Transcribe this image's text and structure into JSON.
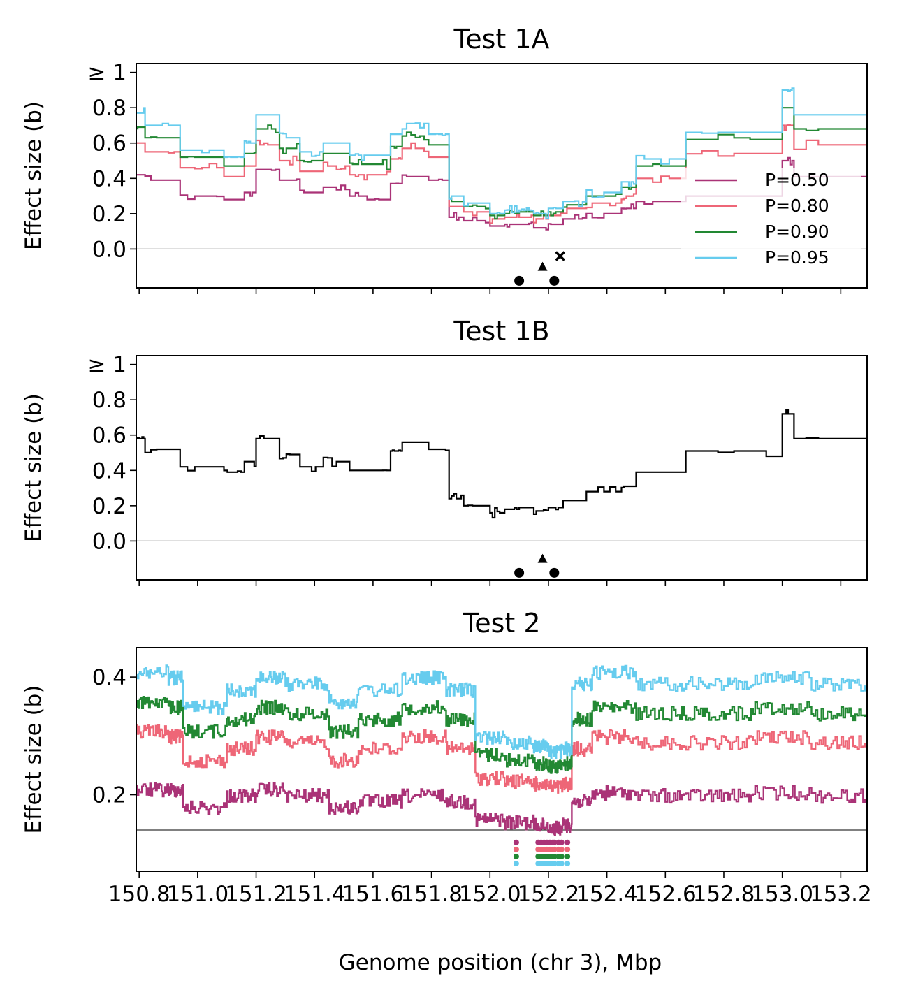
{
  "chart_data": [
    {
      "type": "line",
      "title": "Test 1A",
      "ylabel": "Effect size (b)",
      "ylim": [
        -0.22,
        1.05
      ],
      "xlim": [
        150.79,
        153.29
      ],
      "yticks": [
        0.0,
        0.2,
        0.4,
        0.6,
        0.8,
        1.0
      ],
      "ytick_labels": [
        "0.0",
        "0.2",
        "0.4",
        "0.6",
        "0.8",
        "≥ 1"
      ],
      "xticks": [
        150.8,
        151.0,
        151.2,
        151.4,
        151.6,
        151.8,
        152.0,
        152.2,
        152.4,
        152.6,
        152.8,
        153.0,
        153.2
      ],
      "reference_line": 0.0,
      "series": [
        {
          "name": "P=0.50",
          "color": "#aa3377",
          "x": [
            150.79,
            150.82,
            150.94,
            151.09,
            151.16,
            151.2,
            151.28,
            151.35,
            151.43,
            151.52,
            151.58,
            151.66,
            151.7,
            151.79,
            151.86,
            151.91,
            152.0,
            152.05,
            152.1,
            152.15,
            152.2,
            152.25,
            152.33,
            152.45,
            152.5,
            152.67,
            153.0,
            153.04,
            153.29
          ],
          "values": [
            0.42,
            0.39,
            0.3,
            0.28,
            0.32,
            0.45,
            0.39,
            0.32,
            0.35,
            0.3,
            0.28,
            0.37,
            0.41,
            0.39,
            0.18,
            0.16,
            0.13,
            0.14,
            0.14,
            0.12,
            0.14,
            0.17,
            0.2,
            0.23,
            0.27,
            0.3,
            0.5,
            0.41,
            0.41
          ]
        },
        {
          "name": "P=0.80",
          "color": "#ee6677",
          "x": [
            150.79,
            150.82,
            150.94,
            151.09,
            151.16,
            151.2,
            151.28,
            151.35,
            151.43,
            151.52,
            151.58,
            151.66,
            151.7,
            151.79,
            151.86,
            151.91,
            152.0,
            152.05,
            152.1,
            152.15,
            152.2,
            152.25,
            152.33,
            152.45,
            152.5,
            152.67,
            153.0,
            153.04,
            153.29
          ],
          "values": [
            0.6,
            0.55,
            0.46,
            0.41,
            0.47,
            0.59,
            0.5,
            0.44,
            0.47,
            0.42,
            0.42,
            0.51,
            0.57,
            0.52,
            0.24,
            0.21,
            0.17,
            0.18,
            0.18,
            0.17,
            0.19,
            0.23,
            0.26,
            0.3,
            0.4,
            0.54,
            0.7,
            0.59,
            0.59
          ]
        },
        {
          "name": "P=0.90",
          "color": "#228833",
          "x": [
            150.79,
            150.82,
            150.94,
            151.09,
            151.16,
            151.2,
            151.28,
            151.35,
            151.43,
            151.52,
            151.58,
            151.66,
            151.7,
            151.79,
            151.86,
            151.91,
            152.0,
            152.05,
            152.1,
            152.15,
            152.2,
            152.25,
            152.33,
            152.45,
            152.5,
            152.67,
            153.0,
            153.04,
            153.29
          ],
          "values": [
            0.69,
            0.63,
            0.52,
            0.47,
            0.54,
            0.68,
            0.57,
            0.5,
            0.54,
            0.48,
            0.48,
            0.58,
            0.64,
            0.59,
            0.27,
            0.24,
            0.19,
            0.2,
            0.21,
            0.19,
            0.21,
            0.25,
            0.3,
            0.35,
            0.47,
            0.62,
            0.8,
            0.68,
            0.68
          ]
        },
        {
          "name": "P=0.95",
          "color": "#66ccee",
          "x": [
            150.79,
            150.82,
            150.94,
            151.09,
            151.16,
            151.2,
            151.28,
            151.35,
            151.43,
            151.52,
            151.58,
            151.66,
            151.7,
            151.79,
            151.86,
            151.91,
            152.0,
            152.05,
            152.1,
            152.15,
            152.2,
            152.25,
            152.33,
            152.45,
            152.5,
            152.67,
            153.0,
            153.04,
            153.29
          ],
          "values": [
            0.77,
            0.7,
            0.56,
            0.52,
            0.6,
            0.76,
            0.63,
            0.55,
            0.6,
            0.53,
            0.53,
            0.65,
            0.71,
            0.65,
            0.3,
            0.26,
            0.2,
            0.22,
            0.22,
            0.2,
            0.23,
            0.27,
            0.32,
            0.38,
            0.51,
            0.66,
            0.9,
            0.76,
            0.76
          ]
        }
      ],
      "markers": [
        {
          "shape": "circle",
          "x": 152.1,
          "y": -0.18
        },
        {
          "shape": "triangle",
          "x": 152.18,
          "y": -0.1
        },
        {
          "shape": "circle",
          "x": 152.22,
          "y": -0.18
        },
        {
          "shape": "cross",
          "x": 152.24,
          "y": -0.04
        }
      ],
      "legend": {
        "entries": [
          "P=0.50",
          "P=0.80",
          "P=0.90",
          "P=0.95"
        ],
        "position": "lower-right"
      }
    },
    {
      "type": "line",
      "title": "Test 1B",
      "ylabel": "Effect size (b)",
      "ylim": [
        -0.22,
        1.05
      ],
      "xlim": [
        150.79,
        153.29
      ],
      "yticks": [
        0.0,
        0.2,
        0.4,
        0.6,
        0.8,
        1.0
      ],
      "ytick_labels": [
        "0.0",
        "0.2",
        "0.4",
        "0.6",
        "0.8",
        "≥ 1"
      ],
      "xticks": [
        150.8,
        151.0,
        151.2,
        151.4,
        151.6,
        151.8,
        152.0,
        152.2,
        152.4,
        152.6,
        152.8,
        153.0,
        153.2
      ],
      "reference_line": 0.0,
      "series": [
        {
          "name": "Test 1B",
          "color": "#000000",
          "x": [
            150.79,
            150.82,
            150.94,
            151.09,
            151.16,
            151.2,
            151.28,
            151.35,
            151.43,
            151.52,
            151.58,
            151.66,
            151.7,
            151.79,
            151.86,
            151.91,
            152.0,
            152.05,
            152.1,
            152.15,
            152.2,
            152.25,
            152.33,
            152.45,
            152.5,
            152.67,
            153.0,
            153.04,
            153.29
          ],
          "values": [
            0.58,
            0.52,
            0.42,
            0.39,
            0.45,
            0.58,
            0.49,
            0.42,
            0.45,
            0.4,
            0.4,
            0.51,
            0.56,
            0.52,
            0.24,
            0.2,
            0.16,
            0.18,
            0.19,
            0.17,
            0.19,
            0.23,
            0.28,
            0.31,
            0.39,
            0.51,
            0.72,
            0.58,
            0.58
          ]
        }
      ],
      "markers": [
        {
          "shape": "circle",
          "x": 152.1,
          "y": -0.18
        },
        {
          "shape": "triangle",
          "x": 152.18,
          "y": -0.1
        },
        {
          "shape": "circle",
          "x": 152.22,
          "y": -0.18
        }
      ]
    },
    {
      "type": "line",
      "title": "Test 2",
      "ylabel": "Effect size (b)",
      "xlabel": "Genome position (chr 3), Mbp",
      "ylim": [
        0.07,
        0.45
      ],
      "xlim": [
        150.79,
        153.29
      ],
      "yticks": [
        0.2,
        0.4
      ],
      "ytick_labels": [
        "0.2",
        "0.4"
      ],
      "xticks": [
        150.8,
        151.0,
        151.2,
        151.4,
        151.6,
        151.8,
        152.0,
        152.2,
        152.4,
        152.6,
        152.8,
        153.0,
        153.2
      ],
      "xtick_labels": [
        "150.8",
        "151.0",
        "151.2",
        "151.4",
        "151.6",
        "151.8",
        "152.0",
        "152.2",
        "152.4",
        "152.6",
        "152.8",
        "153.0",
        "153.2"
      ],
      "reference_line": 0.14,
      "series": [
        {
          "name": "P=0.50",
          "color": "#aa3377",
          "x": [
            150.79,
            150.9,
            150.95,
            151.1,
            151.2,
            151.3,
            151.45,
            151.55,
            151.7,
            151.85,
            151.95,
            152.05,
            152.15,
            152.2,
            152.25,
            152.28,
            152.35,
            152.5,
            152.7,
            152.9,
            153.1,
            153.29
          ],
          "values": [
            0.22,
            0.22,
            0.19,
            0.21,
            0.22,
            0.21,
            0.19,
            0.2,
            0.21,
            0.2,
            0.17,
            0.165,
            0.16,
            0.155,
            0.16,
            0.2,
            0.215,
            0.21,
            0.21,
            0.215,
            0.21,
            0.205
          ]
        },
        {
          "name": "P=0.80",
          "color": "#ee6677",
          "x": [
            150.79,
            150.9,
            150.95,
            151.1,
            151.2,
            151.3,
            151.45,
            151.55,
            151.7,
            151.85,
            151.95,
            152.05,
            152.15,
            152.2,
            152.25,
            152.28,
            152.35,
            152.5,
            152.7,
            152.9,
            153.1,
            153.29
          ],
          "values": [
            0.32,
            0.31,
            0.27,
            0.29,
            0.31,
            0.3,
            0.27,
            0.29,
            0.31,
            0.29,
            0.24,
            0.235,
            0.23,
            0.225,
            0.23,
            0.29,
            0.31,
            0.3,
            0.3,
            0.31,
            0.3,
            0.29
          ]
        },
        {
          "name": "P=0.90",
          "color": "#228833",
          "x": [
            150.79,
            150.9,
            150.95,
            151.1,
            151.2,
            151.3,
            151.45,
            151.55,
            151.7,
            151.85,
            151.95,
            152.05,
            152.15,
            152.2,
            152.25,
            152.28,
            152.35,
            152.5,
            152.7,
            152.9,
            153.1,
            153.29
          ],
          "values": [
            0.37,
            0.36,
            0.32,
            0.34,
            0.36,
            0.35,
            0.32,
            0.34,
            0.36,
            0.34,
            0.28,
            0.27,
            0.265,
            0.26,
            0.265,
            0.34,
            0.36,
            0.35,
            0.35,
            0.36,
            0.35,
            0.34
          ]
        },
        {
          "name": "P=0.95",
          "color": "#66ccee",
          "x": [
            150.79,
            150.9,
            150.95,
            151.1,
            151.2,
            151.3,
            151.45,
            151.55,
            151.7,
            151.85,
            151.95,
            152.05,
            152.15,
            152.2,
            152.25,
            152.28,
            152.35,
            152.5,
            152.7,
            152.9,
            153.1,
            153.29
          ],
          "values": [
            0.42,
            0.41,
            0.36,
            0.39,
            0.41,
            0.4,
            0.37,
            0.39,
            0.41,
            0.39,
            0.31,
            0.3,
            0.295,
            0.285,
            0.29,
            0.4,
            0.42,
            0.4,
            0.4,
            0.41,
            0.4,
            0.38
          ]
        }
      ],
      "marker_rows": [
        {
          "color": "#aa3377",
          "y": 0.119
        },
        {
          "color": "#ee6677",
          "y": 0.107
        },
        {
          "color": "#228833",
          "y": 0.095
        },
        {
          "color": "#66ccee",
          "y": 0.083
        }
      ],
      "marker_x": [
        152.09,
        152.165,
        152.175,
        152.185,
        152.195,
        152.205,
        152.215,
        152.22,
        152.235,
        152.245,
        152.265
      ]
    }
  ]
}
